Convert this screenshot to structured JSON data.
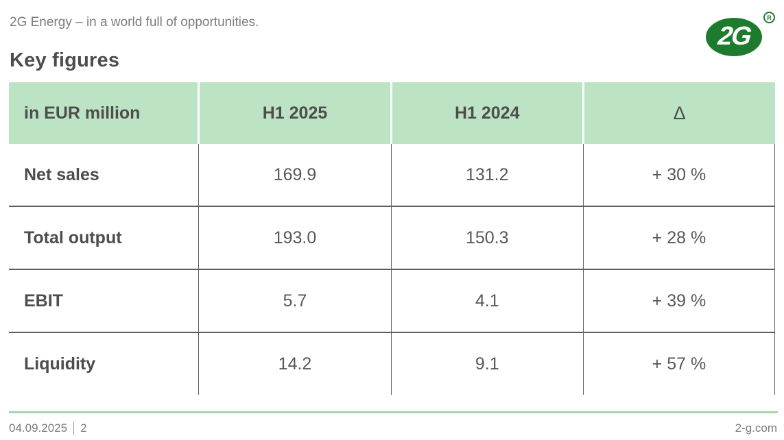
{
  "header": {
    "tagline": "2G Energy – in a world full of opportunities.",
    "title": "Key figures",
    "logo_text": "2G",
    "registered_symbol": "R"
  },
  "table": {
    "columns": [
      "in EUR million",
      "H1 2025",
      "H1 2024",
      "Δ"
    ],
    "rows": [
      {
        "label": "Net sales",
        "h1_2025": "169.9",
        "h1_2024": "131.2",
        "delta": "+ 30 %"
      },
      {
        "label": "Total output",
        "h1_2025": "193.0",
        "h1_2024": "150.3",
        "delta": "+ 28 %"
      },
      {
        "label": "EBIT",
        "h1_2025": "5.7",
        "h1_2024": "4.1",
        "delta": "+ 39 %"
      },
      {
        "label": "Liquidity",
        "h1_2025": "14.2",
        "h1_2024": "9.1",
        "delta": "+ 57 %"
      }
    ]
  },
  "footer": {
    "date": "04.09.2025",
    "page": "2",
    "website": "2-g.com"
  },
  "colors": {
    "header_green": "#BDE3C5",
    "rule_green": "#A6D7AE",
    "logo_green": "#1E7B2E",
    "text_dark": "#4D4D4D",
    "text_gray": "#7C7C7C",
    "border_gray": "#5E5E5E"
  }
}
